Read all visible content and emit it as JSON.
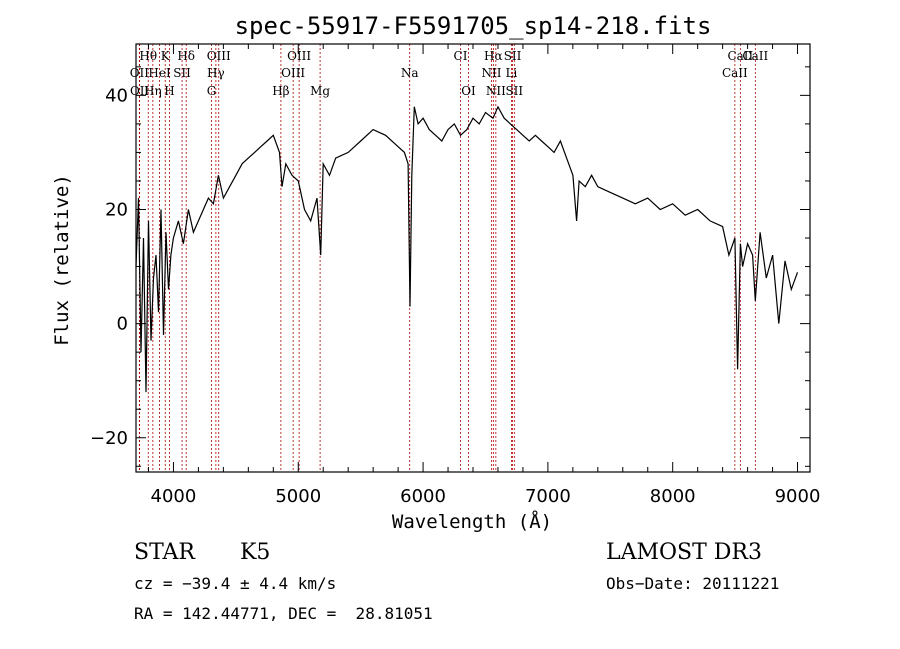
{
  "chart_data": {
    "type": "line",
    "title": "spec-55917-F5591705_sp14-218.fits",
    "xlabel": "Wavelength (Å)",
    "ylabel": "Flux (relative)",
    "xlim": [
      3700,
      9100
    ],
    "ylim": [
      -26,
      49
    ],
    "xticks": [
      4000,
      5000,
      6000,
      7000,
      8000,
      9000
    ],
    "yticks": [
      -20,
      0,
      20,
      40
    ],
    "grid": false,
    "series": [
      {
        "name": "flux",
        "x": [
          3700,
          3720,
          3740,
          3760,
          3780,
          3800,
          3820,
          3840,
          3860,
          3880,
          3900,
          3920,
          3940,
          3960,
          3980,
          4000,
          4040,
          4080,
          4120,
          4160,
          4200,
          4240,
          4280,
          4320,
          4360,
          4400,
          4450,
          4500,
          4550,
          4600,
          4650,
          4700,
          4750,
          4800,
          4850,
          4870,
          4900,
          4950,
          5000,
          5050,
          5100,
          5150,
          5180,
          5200,
          5250,
          5300,
          5400,
          5500,
          5600,
          5700,
          5800,
          5850,
          5880,
          5895,
          5910,
          5930,
          5960,
          6000,
          6050,
          6100,
          6150,
          6200,
          6250,
          6300,
          6350,
          6400,
          6450,
          6500,
          6560,
          6600,
          6650,
          6700,
          6750,
          6800,
          6850,
          6900,
          6950,
          7000,
          7050,
          7100,
          7150,
          7200,
          7230,
          7250,
          7300,
          7350,
          7400,
          7500,
          7600,
          7700,
          7800,
          7900,
          8000,
          8100,
          8200,
          8300,
          8400,
          8450,
          8498,
          8520,
          8542,
          8560,
          8600,
          8640,
          8662,
          8700,
          8750,
          8800,
          8850,
          8900,
          8950,
          9000
        ],
        "y": [
          10,
          22,
          -5,
          15,
          -12,
          18,
          -3,
          8,
          12,
          2,
          20,
          -2,
          16,
          6,
          12,
          15,
          18,
          14,
          20,
          16,
          18,
          20,
          22,
          21,
          26,
          22,
          24,
          26,
          28,
          29,
          30,
          31,
          32,
          33,
          30,
          24,
          28,
          26,
          25,
          20,
          18,
          22,
          12,
          28,
          26,
          29,
          30,
          32,
          34,
          33,
          31,
          30,
          28,
          3,
          26,
          38,
          35,
          36,
          34,
          33,
          32,
          34,
          35,
          33,
          34,
          36,
          35,
          37,
          36,
          38,
          36,
          35,
          34,
          33,
          32,
          33,
          32,
          31,
          30,
          32,
          29,
          26,
          18,
          25,
          24,
          26,
          24,
          23,
          22,
          21,
          22,
          20,
          21,
          19,
          20,
          18,
          17,
          12,
          15,
          -8,
          14,
          10,
          14,
          12,
          4,
          16,
          8,
          12,
          0,
          11,
          6,
          9
        ]
      }
    ],
    "spectral_lines": [
      {
        "label": "Hθ",
        "wavelength": 3798
      },
      {
        "label": "K",
        "wavelength": 3934
      },
      {
        "label": "Hδ",
        "wavelength": 4102
      },
      {
        "label": "OIII",
        "wavelength": 4363
      },
      {
        "label": "OIII",
        "wavelength": 5007
      },
      {
        "label": "CI",
        "wavelength": 6300
      },
      {
        "label": "Hα",
        "wavelength": 6563
      },
      {
        "label": "SII",
        "wavelength": 6717
      },
      {
        "label": "CaII",
        "wavelength": 8542
      },
      {
        "label": "OII",
        "wavelength": 3727
      },
      {
        "label": "HeI",
        "wavelength": 3889
      },
      {
        "label": "SII",
        "wavelength": 4069
      },
      {
        "label": "Hγ",
        "wavelength": 4340
      },
      {
        "label": "OIII",
        "wavelength": 4959
      },
      {
        "label": "Na",
        "wavelength": 5893
      },
      {
        "label": "NII",
        "wavelength": 6548
      },
      {
        "label": "Li",
        "wavelength": 6708
      },
      {
        "label": "CaII",
        "wavelength": 8498
      },
      {
        "label": "OII",
        "wavelength": 3729
      },
      {
        "label": "Hη",
        "wavelength": 3835
      },
      {
        "label": "H",
        "wavelength": 3968
      },
      {
        "label": "G",
        "wavelength": 4305
      },
      {
        "label": "Hβ",
        "wavelength": 4861
      },
      {
        "label": "Mg",
        "wavelength": 5175
      },
      {
        "label": "OI",
        "wavelength": 6364
      },
      {
        "label": "NII",
        "wavelength": 6583
      },
      {
        "label": "SII",
        "wavelength": 6731
      },
      {
        "label": "CaII",
        "wavelength": 8662
      }
    ]
  },
  "info": {
    "class": "STAR",
    "subclass": "K5",
    "survey": "LAMOST DR3",
    "cz": "cz = −39.4 ± 4.4 km/s",
    "obs_date": "Obs−Date: 20111221",
    "coords": "RA = 142.44771, DEC =  28.81051"
  }
}
